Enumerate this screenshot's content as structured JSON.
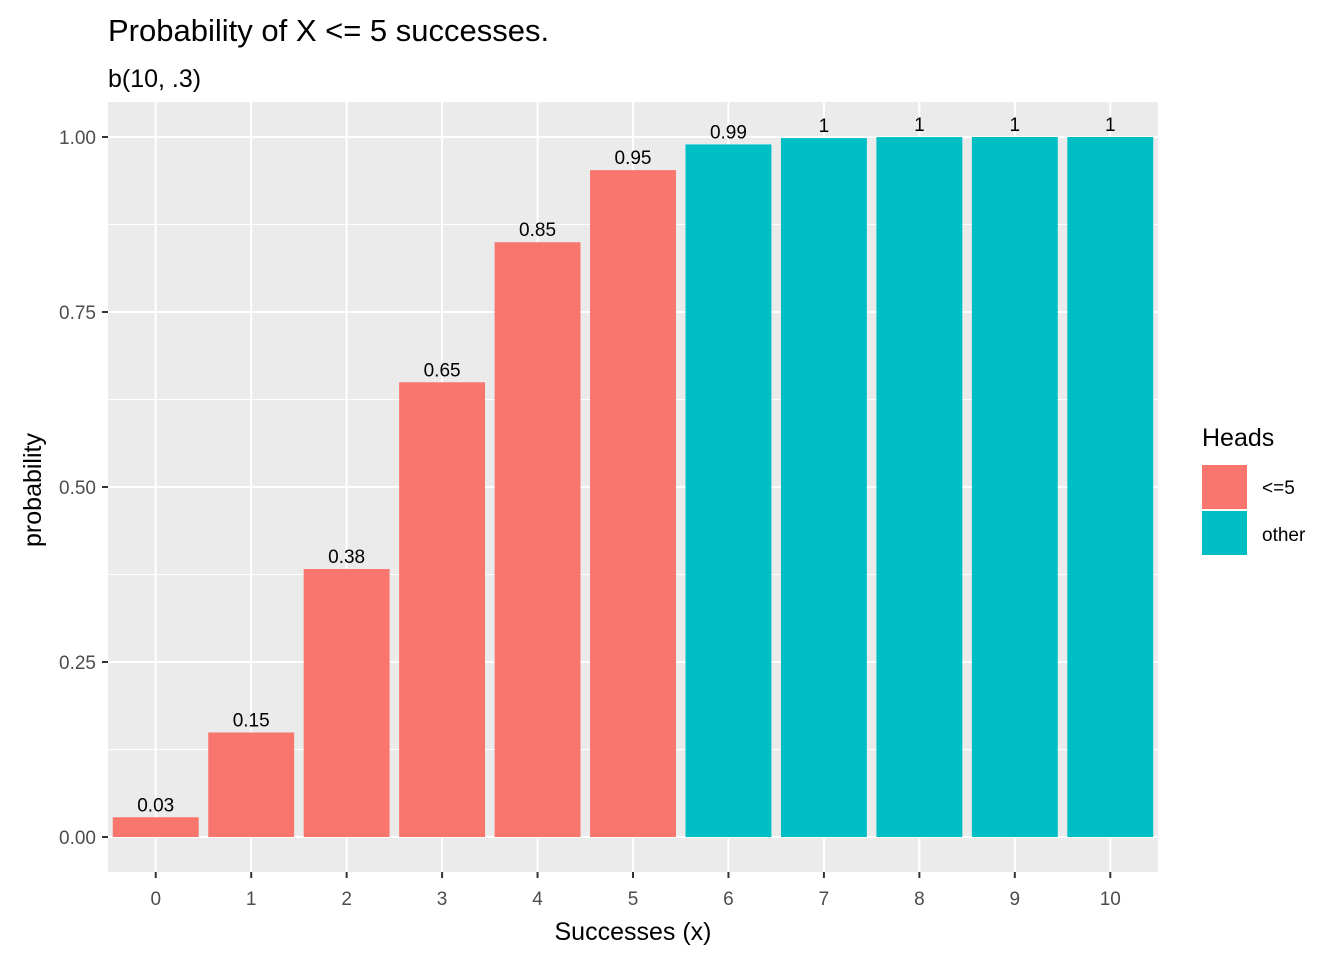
{
  "chart_data": {
    "type": "bar",
    "title": "Probability of X <= 5 successes.",
    "subtitle": "b(10, .3)",
    "xlabel": "Successes (x)",
    "ylabel": "probability",
    "categories": [
      "0",
      "1",
      "2",
      "3",
      "4",
      "5",
      "6",
      "7",
      "8",
      "9",
      "10"
    ],
    "values": [
      0.0282,
      0.1493,
      0.3828,
      0.6496,
      0.8497,
      0.9527,
      0.9894,
      0.9984,
      0.9999,
      1.0,
      1.0
    ],
    "data_labels": [
      "0.03",
      "0.15",
      "0.38",
      "0.65",
      "0.85",
      "0.95",
      "0.99",
      "1",
      "1",
      "1",
      "1"
    ],
    "groups": [
      "<=5",
      "<=5",
      "<=5",
      "<=5",
      "<=5",
      "<=5",
      "other",
      "other",
      "other",
      "other",
      "other"
    ],
    "y_ticks": [
      "0.00",
      "0.25",
      "0.50",
      "0.75",
      "1.00"
    ],
    "y_tick_values": [
      0,
      0.25,
      0.5,
      0.75,
      1.0
    ],
    "ylim": [
      -0.05,
      1.05
    ],
    "grid": true,
    "legend": {
      "title": "Heads",
      "position": "right",
      "items": [
        {
          "label": "<=5",
          "color": "#F8766D"
        },
        {
          "label": "other",
          "color": "#00BFC4"
        }
      ]
    },
    "colors": {
      "panel_background": "#EBEBEB",
      "grid": "#FFFFFF"
    }
  }
}
